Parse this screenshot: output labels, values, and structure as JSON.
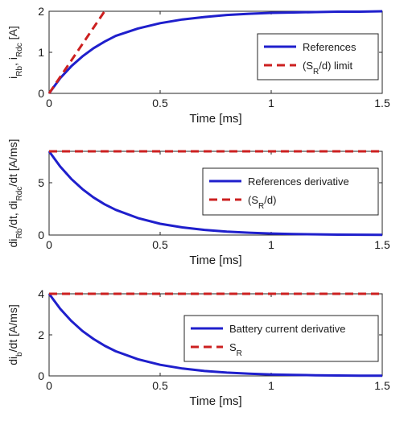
{
  "chart_data": [
    {
      "type": "line",
      "xlabel": "Time [ms]",
      "ylabel_parts": [
        [
          "i",
          ""
        ],
        [
          "Rb",
          "sub"
        ],
        [
          ", i",
          ""
        ],
        [
          "Rdc",
          "sub"
        ],
        [
          " [A]",
          ""
        ]
      ],
      "xlim": [
        0,
        1.5
      ],
      "ylim": [
        0,
        2
      ],
      "xticks": [
        0,
        0.5,
        1,
        1.5
      ],
      "xtick_labels": [
        "0",
        "0.5",
        "1",
        "1.5"
      ],
      "yticks": [
        0,
        1,
        2
      ],
      "ytick_labels": [
        "0",
        "1",
        "2"
      ],
      "legend_position": "bottom-right",
      "series": [
        {
          "name_parts": [
            [
              "References",
              ""
            ]
          ],
          "color": "#1f1fcc",
          "dash": "solid",
          "x": [
            0,
            0.05,
            0.1,
            0.15,
            0.2,
            0.25,
            0.3,
            0.4,
            0.5,
            0.6,
            0.7,
            0.8,
            0.9,
            1.0,
            1.1,
            1.2,
            1.3,
            1.4,
            1.5
          ],
          "y": [
            0,
            0.37,
            0.66,
            0.9,
            1.1,
            1.26,
            1.4,
            1.58,
            1.71,
            1.8,
            1.86,
            1.91,
            1.94,
            1.96,
            1.97,
            1.98,
            1.99,
            1.99,
            2.0
          ]
        },
        {
          "name_parts": [
            [
              "(S",
              ""
            ],
            [
              "R",
              "sub"
            ],
            [
              "/d) limit",
              ""
            ]
          ],
          "color": "#cc2020",
          "dash": "dashed",
          "x": [
            0,
            0.25
          ],
          "y": [
            0,
            2.0
          ]
        }
      ]
    },
    {
      "type": "line",
      "xlabel": "Time [ms]",
      "ylabel_parts": [
        [
          "di",
          ""
        ],
        [
          "Rb",
          "sub"
        ],
        [
          "/dt, di",
          ""
        ],
        [
          "Rdc",
          "sub"
        ],
        [
          "/dt [A/ms]",
          ""
        ]
      ],
      "xlim": [
        0,
        1.5
      ],
      "ylim": [
        0,
        8
      ],
      "xticks": [
        0,
        0.5,
        1,
        1.5
      ],
      "xtick_labels": [
        "0",
        "0.5",
        "1",
        "1.5"
      ],
      "yticks": [
        0,
        5
      ],
      "ytick_labels": [
        "0",
        "5"
      ],
      "legend_position": "center-right",
      "series": [
        {
          "name_parts": [
            [
              "References derivative",
              ""
            ]
          ],
          "color": "#1f1fcc",
          "dash": "solid",
          "x": [
            0,
            0.05,
            0.1,
            0.15,
            0.2,
            0.25,
            0.3,
            0.4,
            0.5,
            0.6,
            0.7,
            0.8,
            0.9,
            1.0,
            1.1,
            1.2,
            1.3,
            1.4,
            1.5
          ],
          "y": [
            8.0,
            6.55,
            5.36,
            4.39,
            3.59,
            2.94,
            2.41,
            1.62,
            1.08,
            0.73,
            0.49,
            0.33,
            0.22,
            0.15,
            0.1,
            0.07,
            0.04,
            0.03,
            0.02
          ]
        },
        {
          "name_parts": [
            [
              "(S",
              ""
            ],
            [
              "R",
              "sub"
            ],
            [
              "/d)",
              ""
            ]
          ],
          "color": "#cc2020",
          "dash": "dashed",
          "x": [
            0,
            1.5
          ],
          "y": [
            8.0,
            8.0
          ]
        }
      ]
    },
    {
      "type": "line",
      "xlabel": "Time [ms]",
      "ylabel_parts": [
        [
          "di",
          ""
        ],
        [
          "b",
          "sub"
        ],
        [
          "/dt [A/ms]",
          ""
        ]
      ],
      "xlim": [
        0,
        1.5
      ],
      "ylim": [
        0,
        4
      ],
      "xticks": [
        0,
        0.5,
        1,
        1.5
      ],
      "xtick_labels": [
        "0",
        "0.5",
        "1",
        "1.5"
      ],
      "yticks": [
        0,
        2,
        4
      ],
      "ytick_labels": [
        "0",
        "2",
        "4"
      ],
      "legend_position": "center-right",
      "series": [
        {
          "name_parts": [
            [
              "Battery current derivative",
              ""
            ]
          ],
          "color": "#1f1fcc",
          "dash": "solid",
          "x": [
            0,
            0.05,
            0.1,
            0.15,
            0.2,
            0.25,
            0.3,
            0.4,
            0.5,
            0.6,
            0.7,
            0.8,
            0.9,
            1.0,
            1.1,
            1.2,
            1.3,
            1.4,
            1.5
          ],
          "y": [
            4.0,
            3.27,
            2.68,
            2.19,
            1.8,
            1.47,
            1.2,
            0.81,
            0.54,
            0.36,
            0.24,
            0.16,
            0.11,
            0.07,
            0.05,
            0.03,
            0.02,
            0.01,
            0.01
          ]
        },
        {
          "name_parts": [
            [
              "S",
              ""
            ],
            [
              "R",
              "sub"
            ]
          ],
          "color": "#cc2020",
          "dash": "dashed",
          "x": [
            0,
            1.5
          ],
          "y": [
            4.0,
            4.0
          ]
        }
      ]
    }
  ]
}
